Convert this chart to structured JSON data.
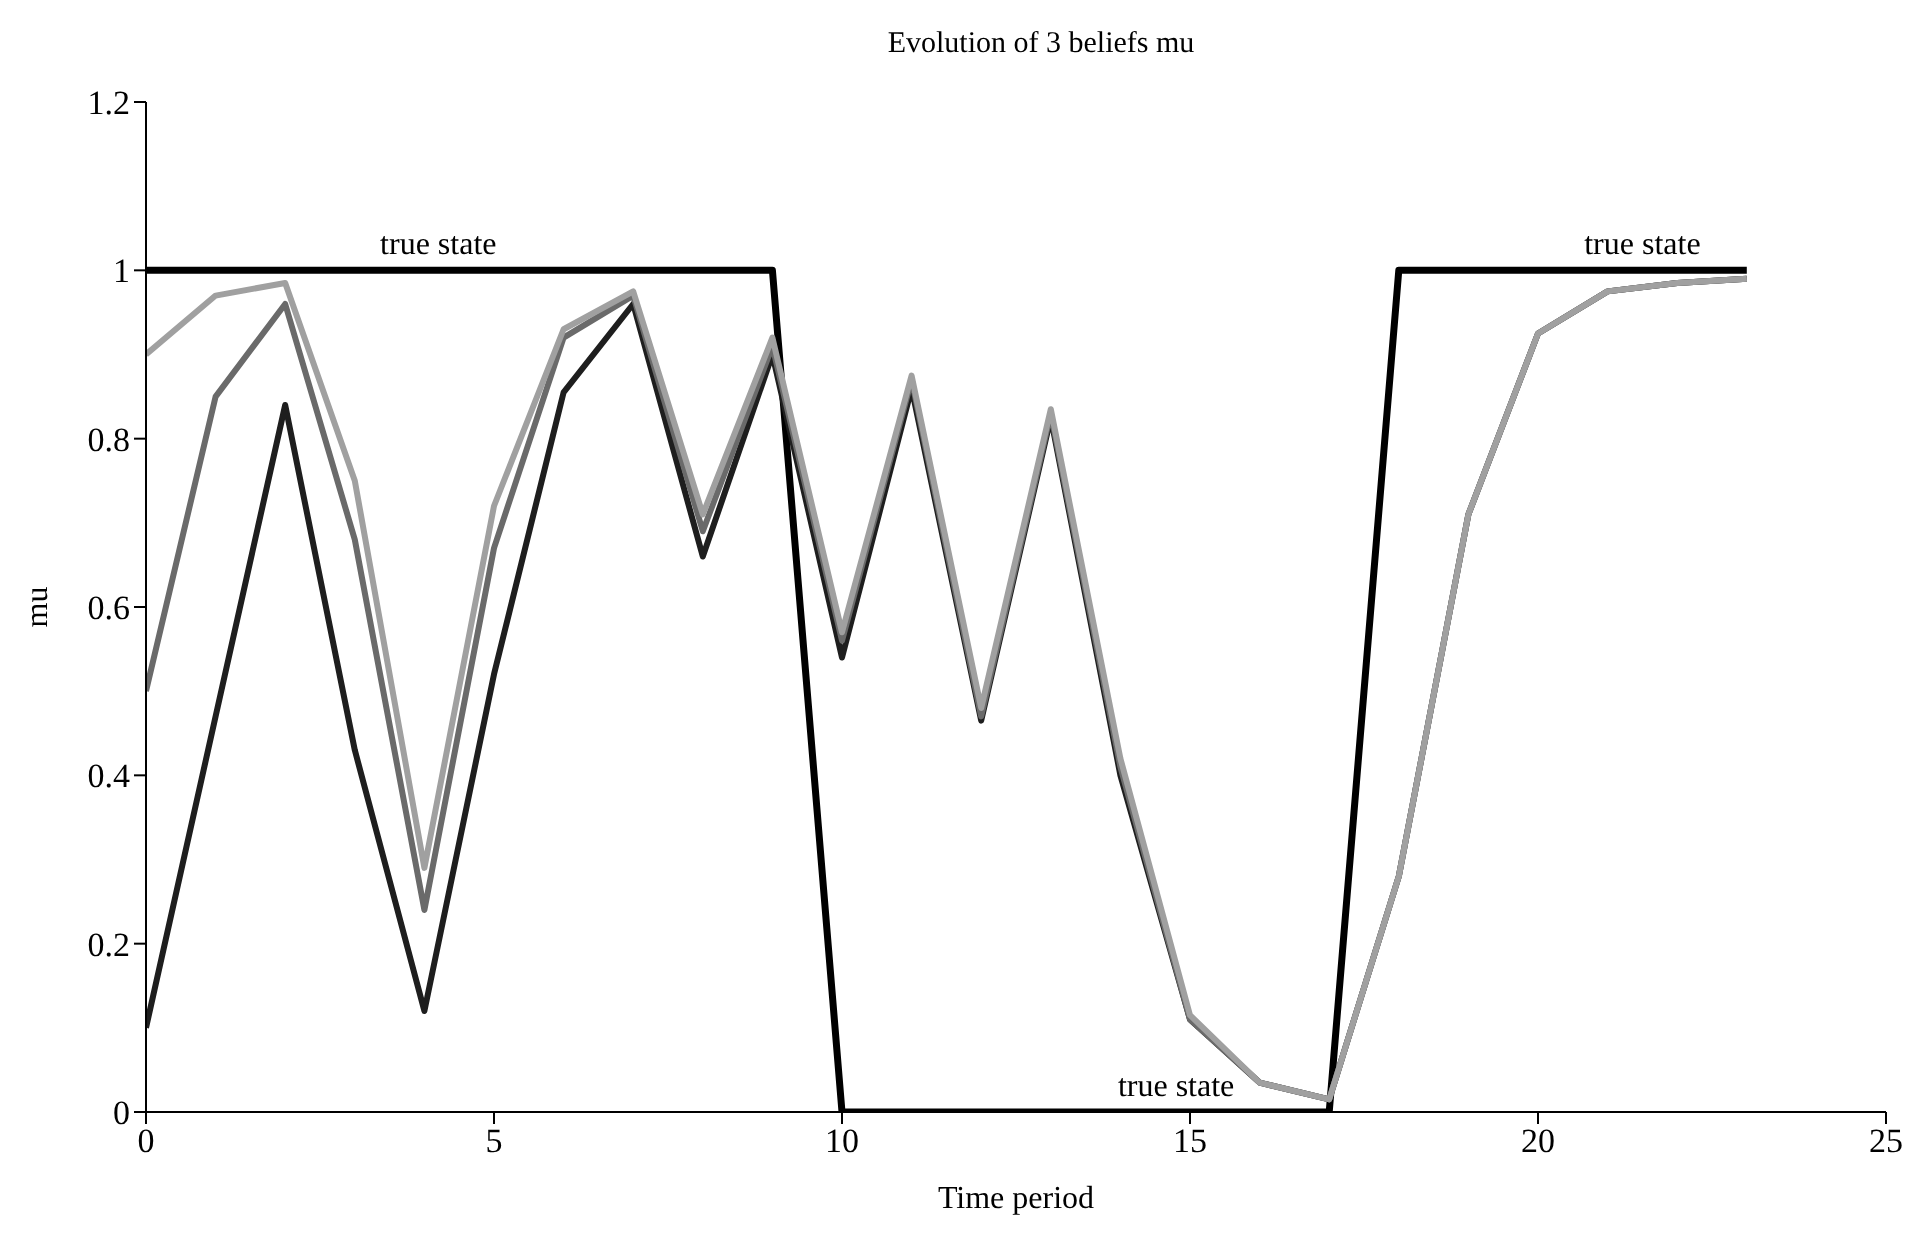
{
  "chart_data": {
    "type": "line",
    "title": "Evolution of 3 beliefs mu",
    "xlabel": "Time period",
    "ylabel": "mu",
    "x": [
      0,
      1,
      2,
      3,
      4,
      5,
      6,
      7,
      8,
      9,
      10,
      11,
      12,
      13,
      14,
      15,
      16,
      17,
      18,
      19,
      20,
      21,
      22,
      23
    ],
    "series": [
      {
        "color": "#000000",
        "values": [
          1,
          1,
          1,
          1,
          1,
          1,
          1,
          1,
          1,
          1,
          0,
          0,
          0,
          0,
          0,
          0,
          0,
          0,
          1,
          1,
          1,
          1,
          1,
          1
        ]
      },
      {
        "color": "#1e1e1e",
        "values": [
          0.1,
          0.47,
          0.84,
          0.43,
          0.12,
          0.52,
          0.855,
          0.96,
          0.66,
          0.9,
          0.54,
          0.86,
          0.465,
          0.825,
          0.4,
          0.11,
          0.035,
          0.015,
          0.28,
          0.71,
          0.925,
          0.975,
          0.985,
          0.99
        ]
      },
      {
        "color": "#6a6a6a",
        "values": [
          0.5,
          0.85,
          0.96,
          0.68,
          0.24,
          0.67,
          0.92,
          0.97,
          0.69,
          0.91,
          0.56,
          0.87,
          0.47,
          0.83,
          0.41,
          0.11,
          0.035,
          0.015,
          0.28,
          0.71,
          0.925,
          0.975,
          0.985,
          0.99
        ]
      },
      {
        "color": "#a0a0a0",
        "values": [
          0.9,
          0.97,
          0.985,
          0.75,
          0.29,
          0.72,
          0.93,
          0.975,
          0.71,
          0.92,
          0.57,
          0.875,
          0.48,
          0.835,
          0.42,
          0.115,
          0.035,
          0.015,
          0.28,
          0.71,
          0.925,
          0.975,
          0.985,
          0.99
        ]
      }
    ],
    "annotations": [
      {
        "text": "true state",
        "x": 4.2,
        "y": 1
      },
      {
        "text": "true state",
        "x": 14.8,
        "y": 0
      },
      {
        "text": "true state",
        "x": 21.5,
        "y": 1
      }
    ],
    "xlim": [
      0,
      25
    ],
    "xticks": [
      0,
      5,
      10,
      15,
      20,
      25
    ],
    "ylim": [
      0,
      1.2
    ],
    "yticks": [
      0,
      0.2,
      0.4,
      0.6,
      0.8,
      1,
      1.2
    ],
    "grid": false,
    "legend": false,
    "marker": "none",
    "line_style": "solid"
  }
}
